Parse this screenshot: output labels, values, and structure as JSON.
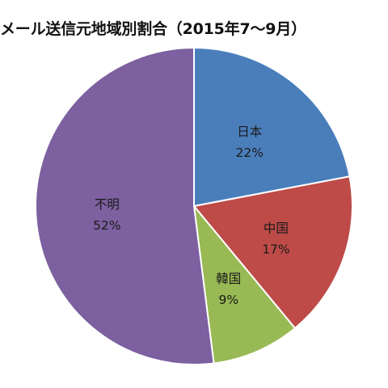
{
  "chart_data": {
    "type": "pie",
    "title": "メール送信元地域別割合（2015年7〜9月）",
    "slices": [
      {
        "name": "日本",
        "value": 22,
        "label": "22%",
        "color": "#4a7ebb"
      },
      {
        "name": "中国",
        "value": 17,
        "label": "17%",
        "color": "#be4b48"
      },
      {
        "name": "韓国",
        "value": 9,
        "label": "9%",
        "color": "#98b954"
      },
      {
        "name": "不明",
        "value": 52,
        "label": "52%",
        "color": "#7d60a0"
      }
    ],
    "start_angle_deg": 0,
    "direction": "clockwise",
    "legend": "none"
  }
}
